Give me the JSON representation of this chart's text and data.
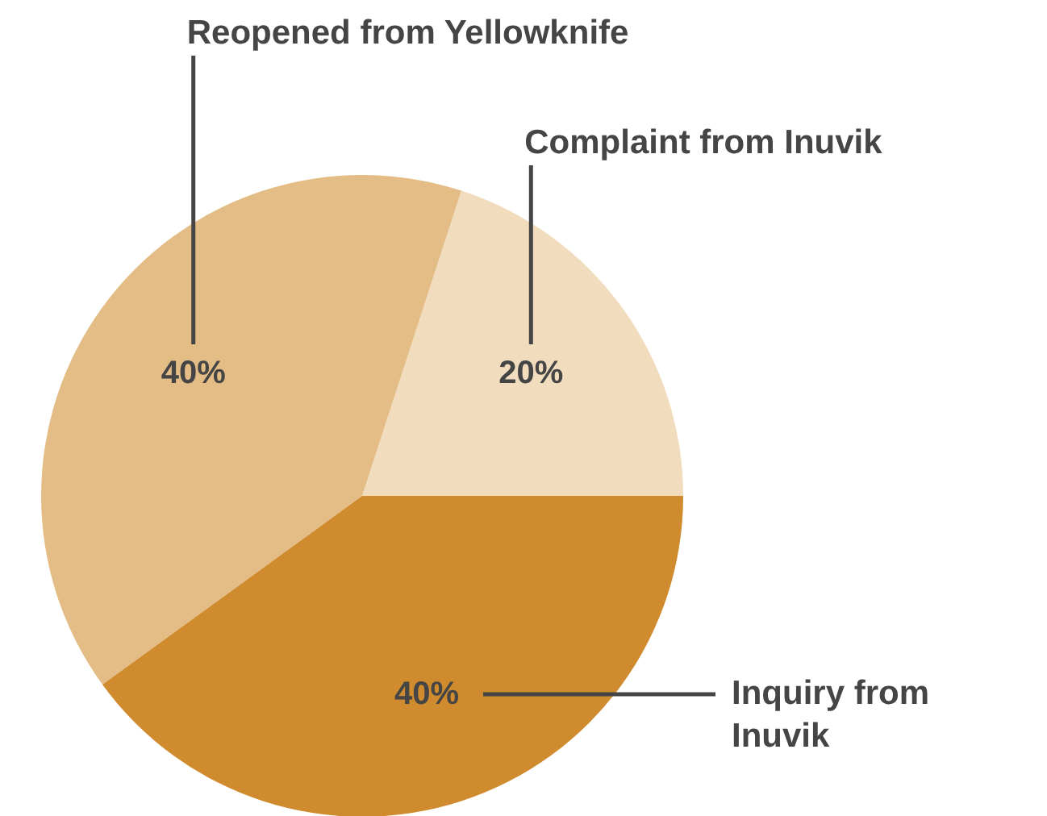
{
  "chart_data": {
    "type": "pie",
    "categories": [
      "Complaint from Inuvik",
      "Reopened from Yellowknife",
      "Inquiry from Inuvik"
    ],
    "values": [
      20,
      40,
      40
    ],
    "colors": [
      "#f1dcbd",
      "#e4bd86",
      "#cf8b2d"
    ],
    "value_labels": [
      "20%",
      "40%",
      "40%"
    ]
  }
}
